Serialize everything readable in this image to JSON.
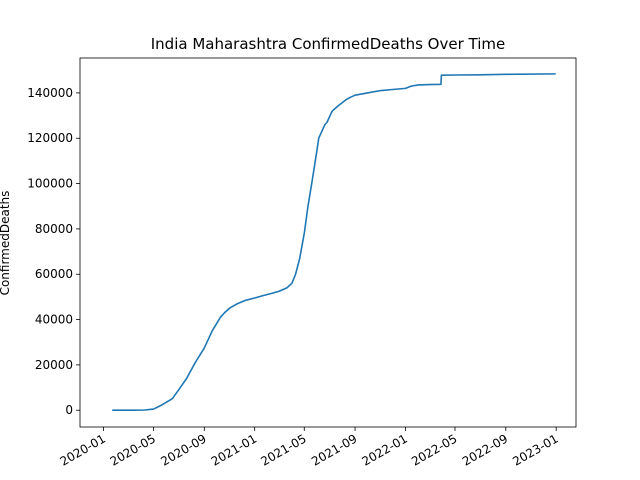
{
  "chart_data": {
    "type": "line",
    "title": "India Maharashtra ConfirmedDeaths Over Time",
    "xlabel": "",
    "ylabel": "ConfirmedDeaths",
    "x_axis": {
      "scale": "date",
      "ticks": [
        "2020-01",
        "2020-05",
        "2020-09",
        "2021-01",
        "2021-05",
        "2021-09",
        "2022-01",
        "2022-05",
        "2022-09",
        "2023-01"
      ],
      "tick_dates": [
        "2020-01-01",
        "2020-05-01",
        "2020-09-01",
        "2021-01-01",
        "2021-05-01",
        "2021-09-01",
        "2022-01-01",
        "2022-05-01",
        "2022-09-01",
        "2023-01-01"
      ],
      "tick_rotation_deg": 30
    },
    "y_axis": {
      "ticks": [
        0,
        20000,
        40000,
        60000,
        80000,
        100000,
        120000,
        140000
      ],
      "ylim": [
        -7400,
        155400
      ]
    },
    "grid": false,
    "legend": "none",
    "colors": {
      "line": "#1f77b4"
    },
    "series": [
      {
        "x": [
          "2020-01-22",
          "2020-03-17",
          "2020-04-10",
          "2020-05-01",
          "2020-05-20",
          "2020-06-10",
          "2020-06-16",
          "2020-07-01",
          "2020-07-20",
          "2020-08-10",
          "2020-09-01",
          "2020-09-20",
          "2020-10-10",
          "2020-10-20",
          "2020-11-01",
          "2020-11-20",
          "2020-12-10",
          "2021-01-01",
          "2021-01-20",
          "2021-02-10",
          "2021-03-01",
          "2021-03-20",
          "2021-04-01",
          "2021-04-10",
          "2021-04-20",
          "2021-05-01",
          "2021-05-10",
          "2021-05-20",
          "2021-06-01",
          "2021-06-05",
          "2021-06-10",
          "2021-06-20",
          "2021-06-25",
          "2021-07-05",
          "2021-07-08",
          "2021-07-20",
          "2021-08-10",
          "2021-08-20",
          "2021-09-01",
          "2021-10-01",
          "2021-11-01",
          "2021-12-01",
          "2022-01-01",
          "2022-01-15",
          "2022-02-01",
          "2022-03-01",
          "2022-03-28",
          "2022-03-29",
          "2022-05-01",
          "2022-07-01",
          "2022-09-01",
          "2022-12-31"
        ],
        "y": [
          0,
          0,
          100,
          500,
          2200,
          4500,
          5200,
          9000,
          14000,
          21000,
          27500,
          35000,
          41000,
          43000,
          45000,
          47000,
          48500,
          49500,
          50500,
          51500,
          52500,
          54000,
          56000,
          60000,
          67000,
          78000,
          90000,
          101000,
          115000,
          120000,
          122000,
          126000,
          127000,
          131000,
          132000,
          134000,
          137000,
          138000,
          139000,
          140000,
          141000,
          141500,
          142000,
          143000,
          143500,
          143700,
          143800,
          147800,
          147900,
          148000,
          148200,
          148400
        ]
      }
    ]
  }
}
